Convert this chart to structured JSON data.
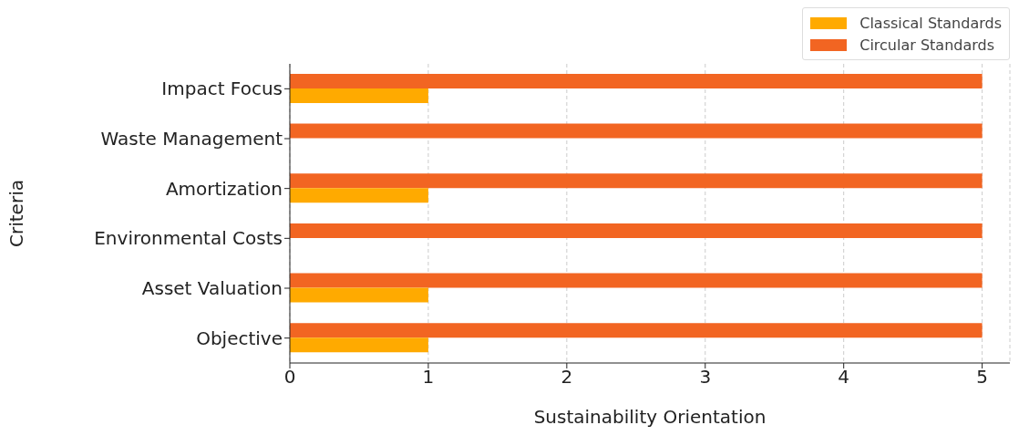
{
  "chart_data": {
    "type": "bar",
    "orientation": "horizontal",
    "xlabel": "Sustainability Orientation",
    "ylabel": "Criteria",
    "categories": [
      "Impact Focus",
      "Waste Management",
      "Amortization",
      "Environmental Costs",
      "Asset Valuation",
      "Objective"
    ],
    "series": [
      {
        "name": "Classical Standards",
        "color": "#ffaa00",
        "values": [
          1,
          0,
          1,
          0,
          1,
          1
        ]
      },
      {
        "name": "Circular Standards",
        "color": "#f26522",
        "values": [
          5,
          5,
          5,
          5,
          5,
          5
        ]
      }
    ],
    "xlim": [
      0,
      5.2
    ],
    "xticks": [
      0,
      1,
      2,
      3,
      4,
      5
    ],
    "grid": "x",
    "legend": "top right"
  }
}
